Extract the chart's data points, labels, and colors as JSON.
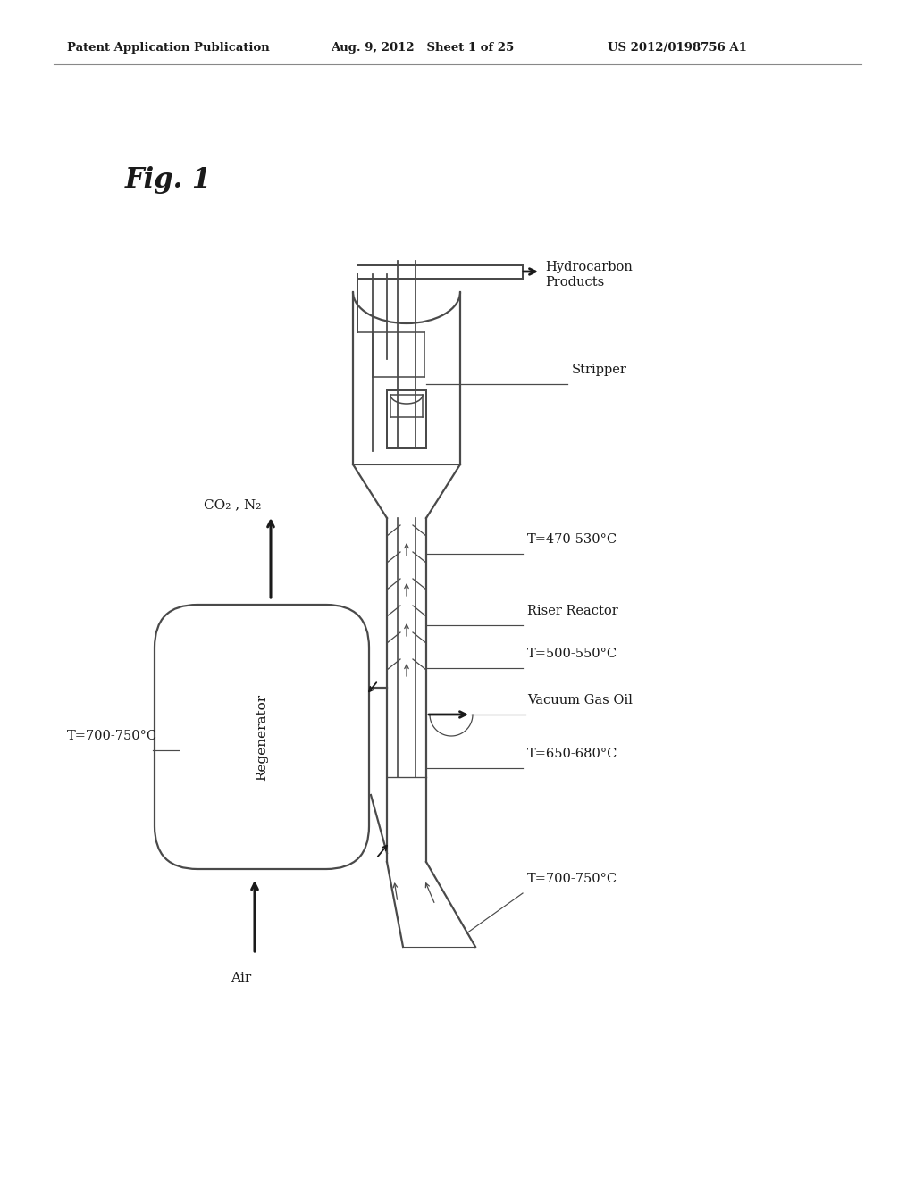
{
  "bg_color": "#ffffff",
  "header_left": "Patent Application Publication",
  "header_mid": "Aug. 9, 2012   Sheet 1 of 25",
  "header_right": "US 2012/0198756 A1",
  "fig_label": "Fig. 1",
  "line_color": "#4a4a4a",
  "dark_color": "#1a1a1a",
  "labels": {
    "hydrocarbon": "Hydrocarbon\nProducts",
    "stripper": "Stripper",
    "t1": "T=470-530°C",
    "riser": "Riser Reactor",
    "t2": "T=500-550°C",
    "vgo": "Vacuum Gas Oil",
    "t3": "T=650-680°C",
    "t4": "T=700-750°C",
    "co2": "CO₂ , N₂",
    "t5": "T=700-750°C",
    "air": "Air",
    "regenerator": "Regenerator"
  }
}
